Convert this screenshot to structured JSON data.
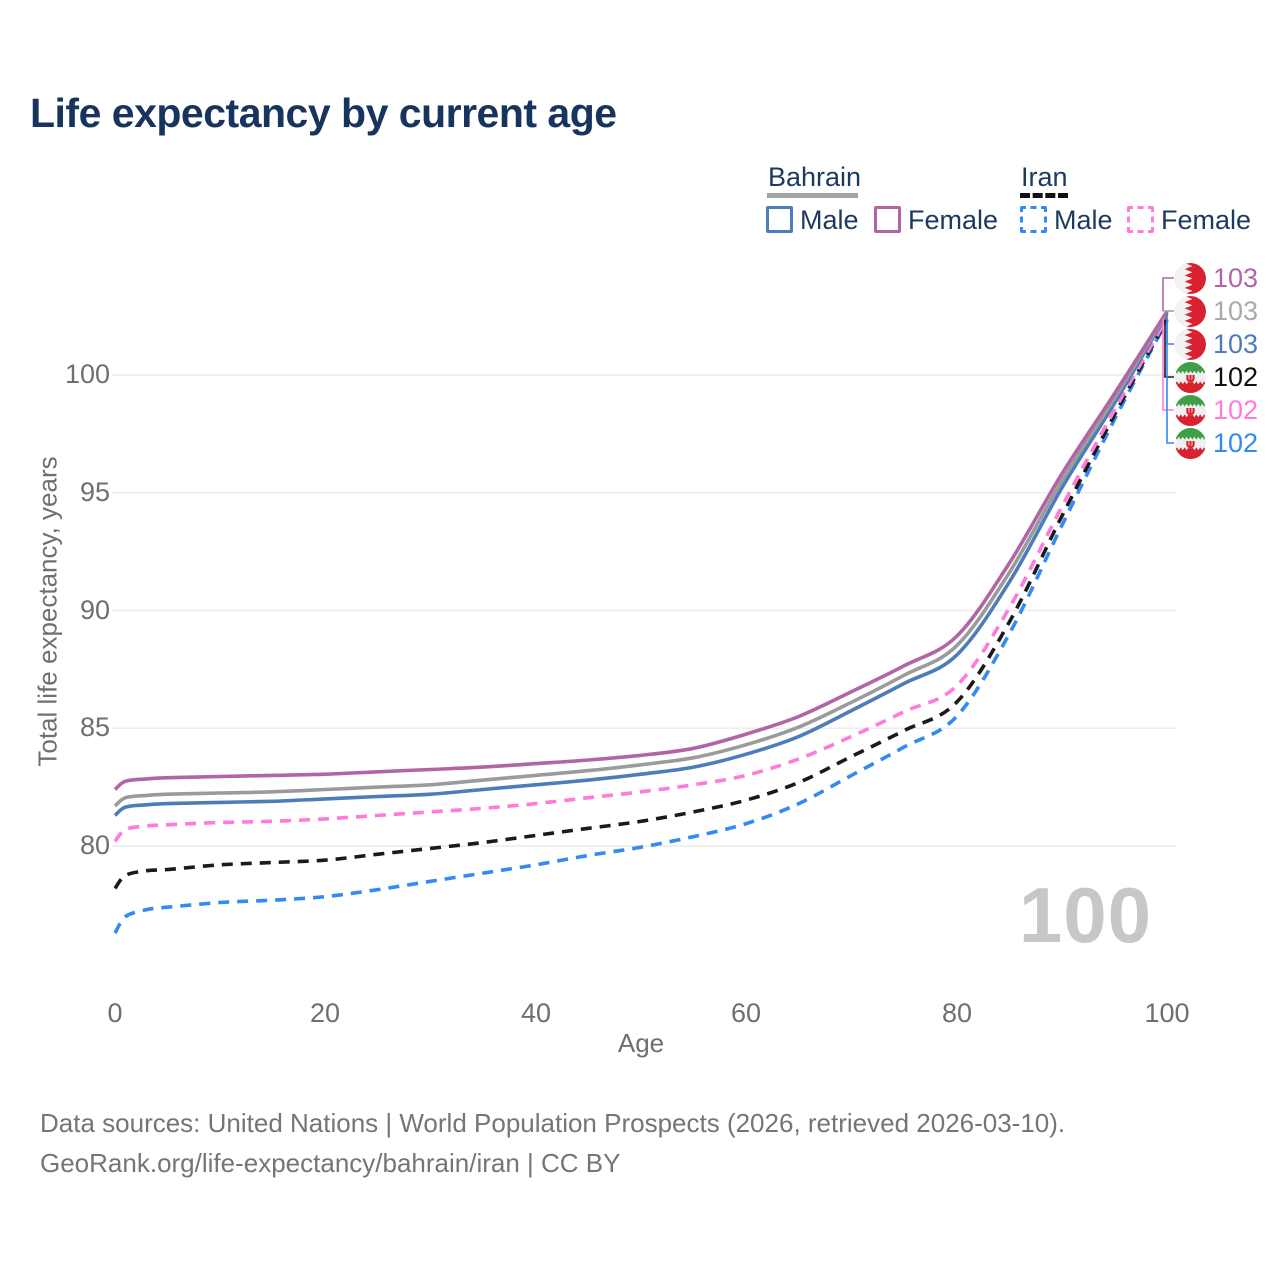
{
  "title": "Life expectancy by current age",
  "legend": {
    "groups": [
      {
        "label": "Bahrain",
        "line_style": "solid",
        "underline_color": "#a3a3a3",
        "items": [
          {
            "label": "Male",
            "color": "#4d7db8"
          },
          {
            "label": "Female",
            "color": "#b165a5"
          }
        ]
      },
      {
        "label": "Iran",
        "line_style": "dashed",
        "underline_color": "#111111",
        "items": [
          {
            "label": "Male",
            "color": "#338af0"
          },
          {
            "label": "Female",
            "color": "#ff7ad9"
          }
        ]
      }
    ]
  },
  "end_labels": [
    {
      "value": "103",
      "color": "#b165a5",
      "flag": "bahrain-flag"
    },
    {
      "value": "103",
      "color": "#aaaaaa",
      "flag": "bahrain-flag"
    },
    {
      "value": "103",
      "color": "#4d7db8",
      "flag": "bahrain-flag"
    },
    {
      "value": "102",
      "color": "#111111",
      "flag": "iran-flag"
    },
    {
      "value": "102",
      "color": "#ff7ad9",
      "flag": "iran-flag"
    },
    {
      "value": "102",
      "color": "#338af0",
      "flag": "iran-flag"
    }
  ],
  "age_indicator": "100",
  "footer": {
    "line1": "Data sources: United Nations | World Population Prospects (2026, retrieved 2026-03-10).",
    "line2": "GeoRank.org/life-expectancy/bahrain/iran | CC BY"
  },
  "chart_data": {
    "type": "line",
    "title": "Life expectancy by current age",
    "xlabel": "Age",
    "ylabel": "Total life expectancy, years",
    "xlim": [
      0,
      100
    ],
    "ylim": [
      76,
      103.5
    ],
    "xticks": [
      0,
      20,
      40,
      60,
      80,
      100
    ],
    "yticks": [
      100,
      95,
      90,
      85,
      80
    ],
    "grid": "horizontal",
    "legend_position": "top-right",
    "x_ages": [
      0,
      1,
      3,
      5,
      10,
      15,
      20,
      25,
      30,
      35,
      40,
      45,
      50,
      55,
      60,
      65,
      70,
      75,
      80,
      85,
      90,
      95,
      100
    ],
    "series": [
      {
        "name": "Bahrain Female",
        "country": "Bahrain",
        "sex": "female",
        "color": "#b165a5",
        "dashed": false,
        "values": [
          82.4,
          82.75,
          82.85,
          82.9,
          82.95,
          83.0,
          83.05,
          83.15,
          83.25,
          83.35,
          83.5,
          83.65,
          83.85,
          84.15,
          84.75,
          85.5,
          86.55,
          87.65,
          88.9,
          92.0,
          95.8,
          99.2,
          102.7
        ],
        "end_label": "103"
      },
      {
        "name": "Bahrain (both sexes)",
        "country": "Bahrain",
        "sex": "total",
        "color": "#9b9b9b",
        "dashed": false,
        "values": [
          81.7,
          82.05,
          82.15,
          82.2,
          82.25,
          82.3,
          82.4,
          82.5,
          82.6,
          82.8,
          83.0,
          83.2,
          83.45,
          83.75,
          84.3,
          85.05,
          86.1,
          87.25,
          88.5,
          91.6,
          95.5,
          99.0,
          102.65
        ],
        "end_label": "103"
      },
      {
        "name": "Bahrain Male",
        "country": "Bahrain",
        "sex": "male",
        "color": "#4d7db8",
        "dashed": false,
        "values": [
          81.3,
          81.65,
          81.75,
          81.8,
          81.85,
          81.9,
          82.0,
          82.1,
          82.2,
          82.4,
          82.6,
          82.8,
          83.05,
          83.35,
          83.9,
          84.65,
          85.75,
          86.9,
          88.1,
          91.2,
          95.2,
          98.8,
          102.6
        ],
        "end_label": "103"
      },
      {
        "name": "Iran (both sexes)",
        "country": "Iran",
        "sex": "total",
        "color": "#1a1a1a",
        "dashed": true,
        "values": [
          78.2,
          78.75,
          78.95,
          79.0,
          79.2,
          79.3,
          79.4,
          79.65,
          79.9,
          80.15,
          80.45,
          80.75,
          81.05,
          81.45,
          81.95,
          82.7,
          83.8,
          84.9,
          86.1,
          89.5,
          94.0,
          98.3,
          102.35
        ],
        "end_label": "102"
      },
      {
        "name": "Iran Female",
        "country": "Iran",
        "sex": "female",
        "color": "#ff7ad9",
        "dashed": true,
        "values": [
          80.2,
          80.7,
          80.85,
          80.9,
          81.0,
          81.05,
          81.15,
          81.3,
          81.45,
          81.6,
          81.8,
          82.05,
          82.3,
          82.6,
          83.0,
          83.7,
          84.65,
          85.7,
          86.8,
          90.1,
          94.4,
          98.5,
          102.4
        ],
        "end_label": "102"
      },
      {
        "name": "Iran Male",
        "country": "Iran",
        "sex": "male",
        "color": "#338af0",
        "dashed": true,
        "values": [
          76.3,
          77.0,
          77.3,
          77.4,
          77.6,
          77.7,
          77.85,
          78.15,
          78.5,
          78.85,
          79.2,
          79.6,
          79.95,
          80.4,
          80.95,
          81.8,
          83.0,
          84.2,
          85.5,
          89.0,
          93.6,
          98.1,
          102.3
        ],
        "end_label": "102"
      }
    ]
  }
}
